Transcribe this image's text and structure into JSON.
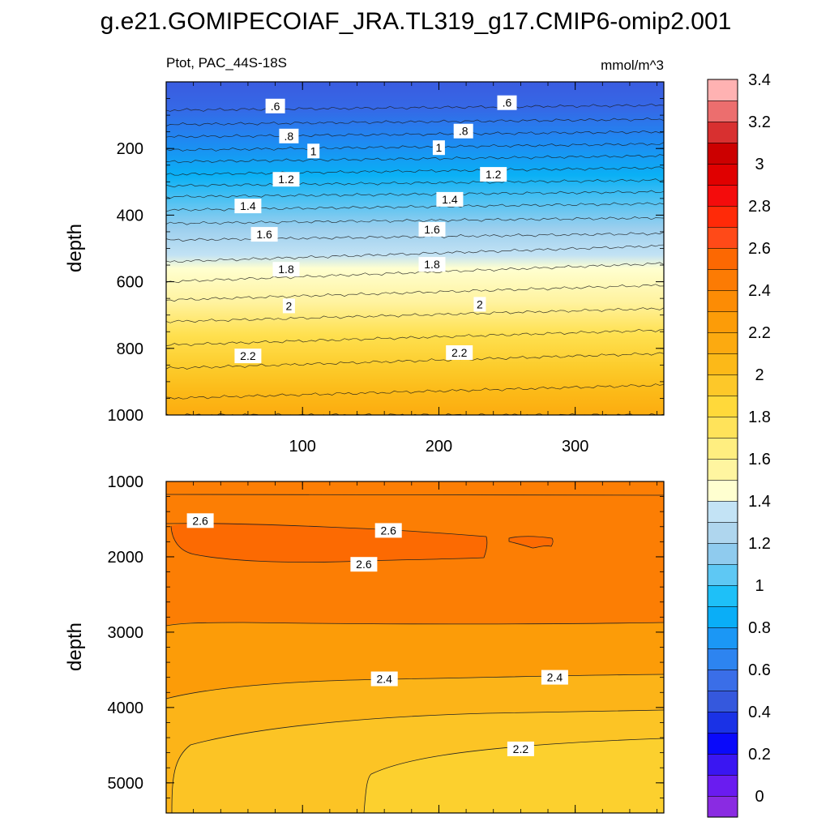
{
  "title": "g.e21.GOMIPECOIAF_JRA.TL319_g17.CMIP6-omip2.001",
  "chart_data": [
    {
      "type": "heatmap",
      "panel": "upper",
      "left_label": "Ptot, PAC_44S-18S",
      "right_label": "mmol/m^3",
      "ylabel": "depth",
      "xlabel": "",
      "ylim": [
        0,
        1000
      ],
      "xlim": [
        0,
        365
      ],
      "y_reversed": true,
      "yticks": [
        "200",
        "400",
        "600",
        "800",
        "1000"
      ],
      "ytick_values": [
        200,
        400,
        600,
        800,
        1000
      ],
      "xticks": [
        "100",
        "200",
        "300"
      ],
      "xtick_values": [
        100,
        200,
        300
      ],
      "contour_interval": 0.1,
      "contour_levels": [
        0.6,
        0.7,
        0.8,
        0.9,
        1.0,
        1.1,
        1.2,
        1.3,
        1.4,
        1.5,
        1.6,
        1.7,
        1.8,
        1.9,
        2.0,
        2.1,
        2.2,
        2.3,
        2.4
      ],
      "contour_depths_left": [
        85,
        128,
        165,
        205,
        240,
        278,
        312,
        345,
        385,
        425,
        475,
        540,
        600,
        655,
        720,
        790,
        860,
        950,
        1000
      ],
      "contour_depths_right": [
        70,
        112,
        150,
        186,
        222,
        258,
        295,
        330,
        365,
        408,
        455,
        492,
        545,
        610,
        680,
        745,
        815,
        910,
        1000
      ],
      "contour_labels": [
        {
          "text": ".6",
          "x": 80,
          "depth": 75
        },
        {
          "text": ".6",
          "x": 250,
          "depth": 65
        },
        {
          "text": ".8",
          "x": 90,
          "depth": 165
        },
        {
          "text": ".8",
          "x": 218,
          "depth": 150
        },
        {
          "text": "1",
          "x": 108,
          "depth": 210
        },
        {
          "text": "1",
          "x": 200,
          "depth": 200
        },
        {
          "text": "1.2",
          "x": 88,
          "depth": 295
        },
        {
          "text": "1.2",
          "x": 240,
          "depth": 280
        },
        {
          "text": "1.4",
          "x": 60,
          "depth": 375
        },
        {
          "text": "1.4",
          "x": 208,
          "depth": 355
        },
        {
          "text": "1.6",
          "x": 72,
          "depth": 460
        },
        {
          "text": "1.6",
          "x": 195,
          "depth": 445
        },
        {
          "text": "1.8",
          "x": 88,
          "depth": 565
        },
        {
          "text": "1.8",
          "x": 195,
          "depth": 550
        },
        {
          "text": "2",
          "x": 90,
          "depth": 675
        },
        {
          "text": "2",
          "x": 230,
          "depth": 670
        },
        {
          "text": "2.2",
          "x": 60,
          "depth": 825
        },
        {
          "text": "2.2",
          "x": 215,
          "depth": 815
        }
      ]
    },
    {
      "type": "heatmap",
      "panel": "lower",
      "ylabel": "depth",
      "xlabel": "",
      "ylim": [
        1000,
        5400
      ],
      "xlim": [
        0,
        365
      ],
      "y_reversed": true,
      "yticks": [
        "1000",
        "2000",
        "3000",
        "4000",
        "5000"
      ],
      "ytick_values": [
        1000,
        2000,
        3000,
        4000,
        5000
      ],
      "contour_levels": [
        2.2,
        2.3,
        2.4,
        2.5,
        2.6
      ],
      "contour_labels": [
        {
          "text": "2.6",
          "x": 25,
          "depth": 1530
        },
        {
          "text": "2.6",
          "x": 163,
          "depth": 1660
        },
        {
          "text": "2.6",
          "x": 145,
          "depth": 2110
        },
        {
          "text": "2.4",
          "x": 160,
          "depth": 3630
        },
        {
          "text": "2.4",
          "x": 285,
          "depth": 3610
        },
        {
          "text": "2.2",
          "x": 260,
          "depth": 4560
        }
      ]
    }
  ],
  "colorbar": {
    "tick_labels": [
      "0",
      "0.2",
      "0.4",
      "0.6",
      "0.8",
      "1",
      "1.2",
      "1.4",
      "1.6",
      "1.8",
      "2",
      "2.2",
      "2.4",
      "2.6",
      "2.8",
      "3",
      "3.2",
      "3.4"
    ],
    "colors": [
      "#8A2BE2",
      "#6A1CF0",
      "#3A16F2",
      "#0A0AFA",
      "#1A32E6",
      "#3558DD",
      "#3A6EE8",
      "#2D84F0",
      "#1B97F5",
      "#0AAEF7",
      "#1EC0F8",
      "#5EC8F4",
      "#8FCBEE",
      "#AFD6EE",
      "#C3E3F5",
      "#FFFFD0",
      "#FFF5A0",
      "#FFEE80",
      "#FFE35A",
      "#FFD93A",
      "#FDC829",
      "#FCB918",
      "#FCAA10",
      "#FC9C08",
      "#FC8C05",
      "#FC7B04",
      "#FC6802",
      "#FF4A18",
      "#FF2A08",
      "#F40C0C",
      "#E00000",
      "#CC0000",
      "#D83030",
      "#EC6E6E",
      "#FFB2B2"
    ]
  }
}
